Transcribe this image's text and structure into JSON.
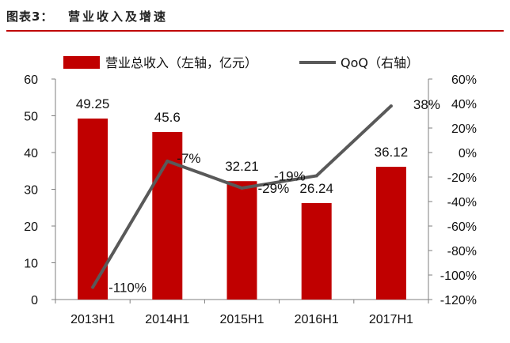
{
  "header": {
    "label": "图表3：",
    "title": "营业收入及增速"
  },
  "chart_data": {
    "type": "bar+line",
    "categories": [
      "2013H1",
      "2014H1",
      "2015H1",
      "2016H1",
      "2017H1"
    ],
    "series": [
      {
        "name": "营业总收入（左轴，亿元）",
        "type": "bar",
        "axis": "left",
        "color": "#c00000",
        "values": [
          49.25,
          45.6,
          32.21,
          26.24,
          36.12
        ],
        "labels": [
          "49.25",
          "45.6",
          "32.21",
          "26.24",
          "36.12"
        ]
      },
      {
        "name": "QoQ（右轴）",
        "type": "line",
        "axis": "right",
        "color": "#595959",
        "values": [
          -110,
          -7,
          -29,
          -19,
          38
        ],
        "labels": [
          "-110%",
          "-7%",
          "-29%",
          "-19%",
          "38%"
        ]
      }
    ],
    "yleft": {
      "min": 0,
      "max": 60,
      "ticks": [
        "0",
        "10",
        "20",
        "30",
        "40",
        "50",
        "60"
      ]
    },
    "yright": {
      "min": -120,
      "max": 60,
      "ticks": [
        "-120%",
        "-100%",
        "-80%",
        "-60%",
        "-40%",
        "-20%",
        "0%",
        "20%",
        "40%",
        "60%"
      ]
    },
    "legend": "top",
    "grid": false
  }
}
